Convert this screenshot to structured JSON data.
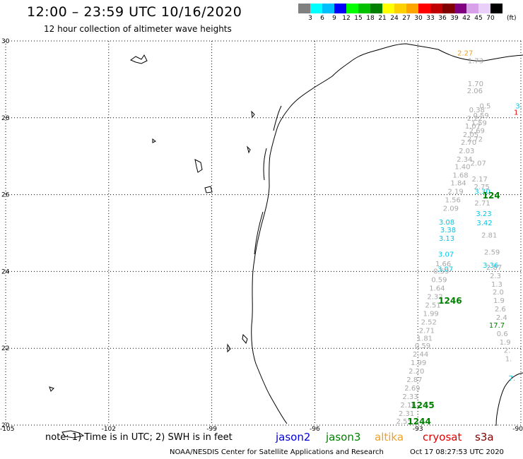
{
  "title": "12:00 – 23:59 UTC 10/16/2020",
  "subtitle": "12 hour collection of altimeter wave heights",
  "scale": {
    "labels": [
      "3",
      "6",
      "9",
      "12",
      "15",
      "18",
      "21",
      "24",
      "27",
      "30",
      "33",
      "36",
      "39",
      "42",
      "45",
      "70"
    ],
    "unit": "(ft)",
    "colors": [
      "#808080",
      "#00ffff",
      "#00bfff",
      "#0000ff",
      "#00ff00",
      "#00c000",
      "#008000",
      "#ffff00",
      "#ffd000",
      "#ffa500",
      "#ff0000",
      "#c00000",
      "#800000",
      "#800080",
      "#d8a0e8",
      "#e8d0f8",
      "#000000"
    ]
  },
  "map": {
    "lon_range": [
      -105,
      -90
    ],
    "lat_range": [
      20,
      30
    ],
    "lon_ticks": [
      "-105",
      "-102",
      "-99",
      "-96",
      "-93",
      "-90"
    ],
    "lat_ticks": [
      "30",
      "28",
      "26",
      "24",
      "22",
      "20"
    ],
    "grid": "dotted"
  },
  "chart_data": {
    "type": "scatter",
    "lon_range": [
      -105,
      -90
    ],
    "lat_range": [
      20,
      30
    ],
    "series": [
      {
        "name": "jason3",
        "color": "#a8a8a8",
        "points": [
          {
            "lon": -93.4,
            "lat": 20.04,
            "label": "2.55"
          },
          {
            "lon": -93.33,
            "lat": 20.24,
            "label": "2.31"
          },
          {
            "lon": -93.28,
            "lat": 20.46,
            "label": "2.16"
          },
          {
            "lon": -93.22,
            "lat": 20.68,
            "label": "2.33"
          },
          {
            "lon": -93.16,
            "lat": 20.9,
            "label": "2.69"
          },
          {
            "lon": -93.1,
            "lat": 21.12,
            "label": "2.87"
          },
          {
            "lon": -93.04,
            "lat": 21.34,
            "label": "2.20"
          },
          {
            "lon": -92.98,
            "lat": 21.56,
            "label": "1.99"
          },
          {
            "lon": -92.92,
            "lat": 21.78,
            "label": "2.44"
          },
          {
            "lon": -92.86,
            "lat": 22.0,
            "label": "0.59"
          },
          {
            "lon": -92.8,
            "lat": 22.2,
            "label": "1.81"
          },
          {
            "lon": -92.74,
            "lat": 22.4,
            "label": "2.71"
          },
          {
            "lon": -92.68,
            "lat": 22.62,
            "label": "2.52"
          },
          {
            "lon": -92.62,
            "lat": 22.84,
            "label": "1.99"
          },
          {
            "lon": -92.56,
            "lat": 23.06,
            "label": "2.51"
          },
          {
            "lon": -92.5,
            "lat": 23.28,
            "label": "2.32"
          },
          {
            "lon": -92.44,
            "lat": 23.5,
            "label": "1.64"
          },
          {
            "lon": -92.38,
            "lat": 23.72,
            "label": "0.59"
          },
          {
            "lon": -92.32,
            "lat": 23.94,
            "label": "0.59"
          },
          {
            "lon": -92.26,
            "lat": 24.14,
            "label": "1.66"
          },
          {
            "lon": -92.04,
            "lat": 25.58,
            "label": "2.09"
          },
          {
            "lon": -91.98,
            "lat": 25.8,
            "label": "1.56"
          },
          {
            "lon": -91.9,
            "lat": 26.02,
            "label": "2.19"
          },
          {
            "lon": -91.82,
            "lat": 26.24,
            "label": "1.84"
          },
          {
            "lon": -91.76,
            "lat": 26.44,
            "label": "1.68"
          },
          {
            "lon": -91.7,
            "lat": 26.66,
            "label": "1.40"
          },
          {
            "lon": -91.64,
            "lat": 26.86,
            "label": "2.34"
          },
          {
            "lon": -91.58,
            "lat": 27.08,
            "label": "2.03"
          },
          {
            "lon": -91.52,
            "lat": 27.3,
            "label": "2.70"
          },
          {
            "lon": -91.46,
            "lat": 27.5,
            "label": "2.05"
          },
          {
            "lon": -91.4,
            "lat": 27.72,
            "label": "1.07"
          },
          {
            "lon": -91.34,
            "lat": 27.92,
            "label": "2.22"
          },
          {
            "lon": -91.28,
            "lat": 28.14,
            "label": "0.38"
          },
          {
            "lon": -91.34,
            "lat": 28.64,
            "label": "2.06"
          },
          {
            "lon": -91.32,
            "lat": 28.82,
            "label": "1.70"
          },
          {
            "lon": -91.32,
            "lat": 29.42,
            "label": "1.73"
          },
          {
            "lon": -90.36,
            "lat": 21.66,
            "label": "1."
          },
          {
            "lon": -90.4,
            "lat": 21.88,
            "label": "2."
          },
          {
            "lon": -90.46,
            "lat": 22.1,
            "label": "1.9"
          },
          {
            "lon": -90.54,
            "lat": 22.32,
            "label": "0.6"
          },
          {
            "lon": -90.56,
            "lat": 22.74,
            "label": "2.4"
          },
          {
            "lon": -90.6,
            "lat": 22.96,
            "label": "2.6"
          },
          {
            "lon": -90.64,
            "lat": 23.18,
            "label": "1.9"
          },
          {
            "lon": -90.66,
            "lat": 23.4,
            "label": "2.0"
          },
          {
            "lon": -90.7,
            "lat": 23.6,
            "label": "1.3"
          },
          {
            "lon": -90.74,
            "lat": 23.82,
            "label": "2.3"
          },
          {
            "lon": -90.78,
            "lat": 24.04,
            "label": "2.87"
          },
          {
            "lon": -90.84,
            "lat": 24.44,
            "label": "2.59"
          },
          {
            "lon": -90.92,
            "lat": 24.88,
            "label": "2.81"
          },
          {
            "lon": -91.12,
            "lat": 25.72,
            "label": "2.71"
          },
          {
            "lon": -91.14,
            "lat": 26.14,
            "label": "2.75"
          },
          {
            "lon": -91.2,
            "lat": 26.34,
            "label": "2.17"
          },
          {
            "lon": -91.24,
            "lat": 26.76,
            "label": "2.07"
          },
          {
            "lon": -91.34,
            "lat": 27.38,
            "label": "2.72"
          },
          {
            "lon": -91.28,
            "lat": 27.6,
            "label": "2.69"
          },
          {
            "lon": -91.22,
            "lat": 27.8,
            "label": "1.59"
          },
          {
            "lon": -91.16,
            "lat": 28.0,
            "label": "0.59"
          },
          {
            "lon": -91.04,
            "lat": 28.24,
            "label": "0.5"
          }
        ]
      },
      {
        "name": "jason3",
        "color": "#00c8e8",
        "points": [
          {
            "lon": -92.18,
            "lat": 24.38,
            "label": "3.07"
          },
          {
            "lon": -92.2,
            "lat": 24.0,
            "label": "3.07"
          },
          {
            "lon": -92.16,
            "lat": 24.8,
            "label": "3.13"
          },
          {
            "lon": -92.12,
            "lat": 25.02,
            "label": "3.38"
          },
          {
            "lon": -92.16,
            "lat": 25.22,
            "label": "3.08"
          },
          {
            "lon": -91.06,
            "lat": 25.2,
            "label": "3.42"
          },
          {
            "lon": -91.08,
            "lat": 25.44,
            "label": "3.23"
          },
          {
            "lon": -91.12,
            "lat": 26.02,
            "label": "3.30"
          },
          {
            "lon": -90.88,
            "lat": 24.1,
            "label": "3.36"
          },
          {
            "lon": -90.06,
            "lat": 28.24,
            "label": "3."
          },
          {
            "lon": -90.26,
            "lat": 21.16,
            "label": "7."
          }
        ]
      },
      {
        "name": "jason3",
        "color": "#008000",
        "points": [
          {
            "lon": -92.06,
            "lat": 23.16,
            "label": "1246"
          },
          {
            "lon": -92.86,
            "lat": 20.44,
            "label": "1245"
          },
          {
            "lon": -92.96,
            "lat": 20.02,
            "label": "1244"
          },
          {
            "lon": -90.86,
            "lat": 25.9,
            "label": "124"
          },
          {
            "lon": -90.7,
            "lat": 22.54,
            "label": "17.7"
          }
        ]
      },
      {
        "name": "altika",
        "color": "#f0a020",
        "points": [
          {
            "lon": -91.62,
            "lat": 29.62,
            "label": "2.27"
          }
        ]
      },
      {
        "name": "cryosat",
        "color": "#e00000",
        "points": [
          {
            "lon": -90.14,
            "lat": 28.08,
            "label": "1"
          }
        ]
      }
    ]
  },
  "note": "note:  1) Time is in UTC; 2) SWH is in feet",
  "legend": [
    {
      "label": "jason2",
      "color": "#0000e0"
    },
    {
      "label": "jason3",
      "color": "#008000"
    },
    {
      "label": "altika",
      "color": "#f0a020"
    },
    {
      "label": "cryosat",
      "color": "#e00000"
    },
    {
      "label": "s3a",
      "color": "#800000"
    }
  ],
  "credit": "NOAA/NESDIS Center for Satellite Applications and Research",
  "timestamp": "Oct 17 08:27:53 UTC 2020"
}
